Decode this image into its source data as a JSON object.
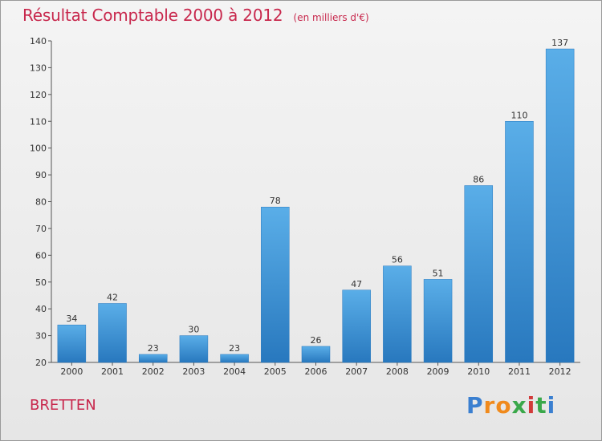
{
  "chart_data": {
    "type": "bar",
    "title": "Résultat Comptable 2000 à 2012",
    "unit_label": "(en milliers d'€)",
    "xlabel": "",
    "ylabel": "",
    "categories": [
      "2000",
      "2001",
      "2002",
      "2003",
      "2004",
      "2005",
      "2006",
      "2007",
      "2008",
      "2009",
      "2010",
      "2011",
      "2012"
    ],
    "values": [
      34,
      42,
      23,
      30,
      23,
      78,
      26,
      47,
      56,
      51,
      86,
      110,
      137
    ],
    "ylim": [
      20,
      140
    ],
    "yticks": [
      20,
      30,
      40,
      50,
      60,
      70,
      80,
      90,
      100,
      110,
      120,
      130,
      140
    ],
    "grid": false,
    "legend": "none",
    "bar_color": "#3b8fd6",
    "bar_color_light": "#5aaee8",
    "bar_color_dark": "#2878be"
  },
  "location": "BRETTEN",
  "brand": {
    "letters": [
      "P",
      "r",
      "o",
      "x",
      "i",
      "t",
      "i"
    ],
    "colors": [
      "#3a7fd0",
      "#f08a1c",
      "#f08a1c",
      "#3aa84a",
      "#d23a3a",
      "#3aa84a",
      "#3a7fd0"
    ]
  }
}
